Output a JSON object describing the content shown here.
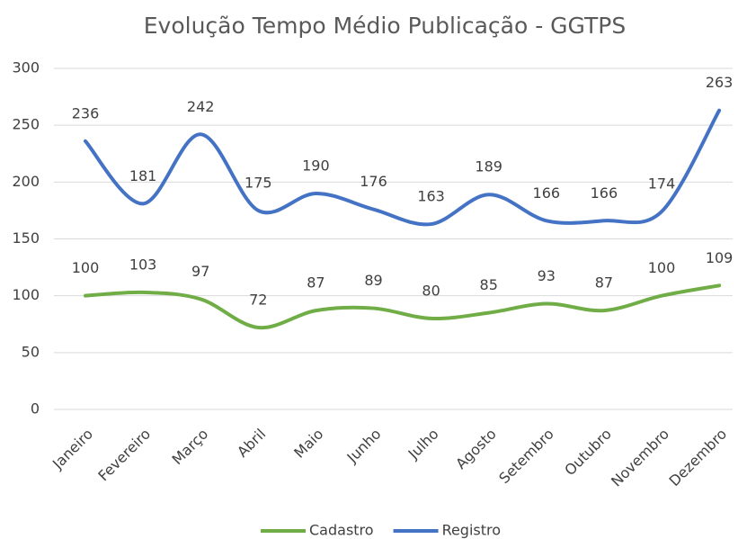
{
  "chart_data": {
    "type": "line",
    "title": "Evolução Tempo Médio Publicação - GGTPS",
    "categories": [
      "Janeiro",
      "Fevereiro",
      "Março",
      "Abril",
      "Maio",
      "Junho",
      "Julho",
      "Agosto",
      "Setembro",
      "Outubro",
      "Novembro",
      "Dezembro"
    ],
    "series": [
      {
        "name": "Cadastro",
        "color": "#70ad47",
        "values": [
          100,
          103,
          97,
          72,
          87,
          89,
          80,
          85,
          93,
          87,
          100,
          109
        ]
      },
      {
        "name": "Registro",
        "color": "#4472c4",
        "values": [
          236,
          181,
          242,
          175,
          190,
          176,
          163,
          189,
          166,
          166,
          174,
          263
        ]
      }
    ],
    "ylim": [
      0,
      300
    ],
    "yticks": [
      0,
      50,
      100,
      150,
      200,
      250,
      300
    ],
    "grid": true,
    "smooth": true,
    "legend": "bottom"
  }
}
